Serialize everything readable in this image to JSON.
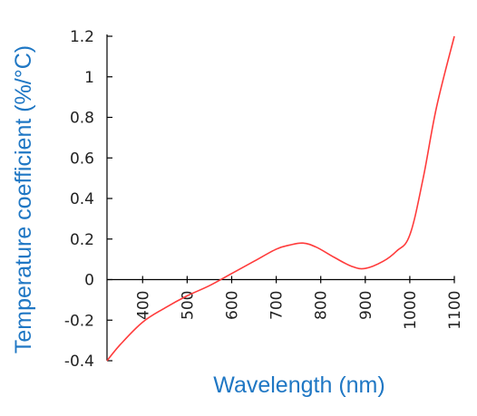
{
  "chart_data": {
    "type": "line",
    "xlabel": "Wavelength (nm)",
    "ylabel": "Temperature coefficient (%/°C)",
    "xlim": [
      320,
      1100
    ],
    "ylim": [
      -0.4,
      1.2
    ],
    "x_ticks": [
      400,
      500,
      600,
      700,
      800,
      900,
      1000,
      1100
    ],
    "y_ticks": [
      -0.4,
      -0.2,
      0,
      0.2,
      0.4,
      0.6,
      0.8,
      1,
      1.2
    ],
    "y_tick_labels": [
      "-0.4",
      "-0.2",
      "0",
      "0.2",
      "0.4",
      "0.6",
      "0.8",
      "1",
      "1.2"
    ],
    "grid": false,
    "legend": "none",
    "colors": {
      "line": "#ff3b3b",
      "axis": "#000000",
      "labels": "#1f77c4"
    },
    "series": [
      {
        "x": [
          320,
          350,
          400,
          450,
          500,
          550,
          600,
          650,
          700,
          730,
          760,
          790,
          830,
          870,
          900,
          940,
          970,
          1000,
          1030,
          1060,
          1100
        ],
        "y": [
          -0.4,
          -0.32,
          -0.21,
          -0.14,
          -0.08,
          -0.03,
          0.03,
          0.09,
          0.15,
          0.17,
          0.18,
          0.16,
          0.11,
          0.065,
          0.055,
          0.09,
          0.14,
          0.22,
          0.5,
          0.85,
          1.2
        ]
      }
    ]
  }
}
